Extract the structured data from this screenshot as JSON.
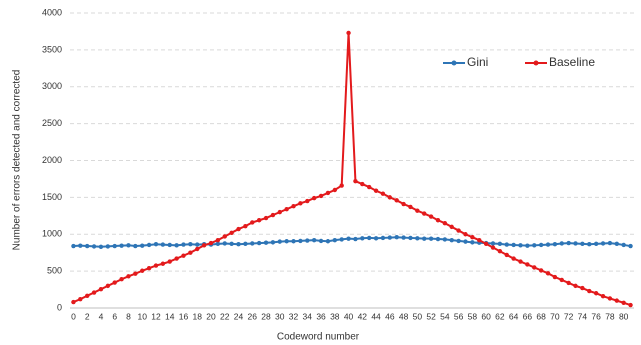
{
  "chart_data": {
    "type": "line",
    "x_label": "Codeword number",
    "y_label": "Number of errors detected and corrected",
    "x": [
      0,
      1,
      2,
      3,
      4,
      5,
      6,
      7,
      8,
      9,
      10,
      11,
      12,
      13,
      14,
      15,
      16,
      17,
      18,
      19,
      20,
      21,
      22,
      23,
      24,
      25,
      26,
      27,
      28,
      29,
      30,
      31,
      32,
      33,
      34,
      35,
      36,
      37,
      38,
      39,
      40,
      41,
      42,
      43,
      44,
      45,
      46,
      47,
      48,
      49,
      50,
      51,
      52,
      53,
      54,
      55,
      56,
      57,
      58,
      59,
      60,
      61,
      62,
      63,
      64,
      65,
      66,
      67,
      68,
      69,
      70,
      71,
      72,
      73,
      74,
      75,
      76,
      77,
      78,
      79,
      80,
      81
    ],
    "xlim": [
      -0.5,
      81.5
    ],
    "xticks": [
      0,
      2,
      4,
      6,
      8,
      10,
      12,
      14,
      16,
      18,
      20,
      22,
      24,
      26,
      28,
      30,
      32,
      34,
      36,
      38,
      40,
      42,
      44,
      46,
      48,
      50,
      52,
      54,
      56,
      58,
      60,
      62,
      64,
      66,
      68,
      70,
      72,
      74,
      76,
      78,
      80
    ],
    "ylim": [
      0,
      4000
    ],
    "yticks": [
      0,
      500,
      1000,
      1500,
      2000,
      2500,
      3000,
      3500,
      4000
    ],
    "grid": true,
    "legend": "upper right",
    "series": [
      {
        "name": "Gini",
        "color": "#2e75b6",
        "values": [
          840,
          845,
          840,
          835,
          830,
          835,
          840,
          845,
          850,
          840,
          845,
          855,
          865,
          860,
          855,
          850,
          860,
          865,
          860,
          865,
          860,
          870,
          875,
          870,
          865,
          870,
          875,
          880,
          885,
          890,
          900,
          905,
          905,
          910,
          915,
          920,
          910,
          905,
          920,
          930,
          940,
          935,
          945,
          950,
          945,
          950,
          955,
          960,
          955,
          950,
          945,
          940,
          940,
          935,
          930,
          920,
          910,
          900,
          890,
          885,
          880,
          875,
          870,
          860,
          855,
          850,
          845,
          850,
          855,
          860,
          865,
          875,
          880,
          875,
          870,
          865,
          870,
          875,
          880,
          870,
          855,
          840
        ]
      },
      {
        "name": "Baseline",
        "color": "#e31a1c",
        "values": [
          80,
          120,
          165,
          210,
          255,
          300,
          345,
          390,
          430,
          465,
          505,
          540,
          575,
          600,
          630,
          670,
          710,
          750,
          800,
          850,
          880,
          920,
          970,
          1020,
          1070,
          1110,
          1160,
          1190,
          1220,
          1260,
          1300,
          1340,
          1380,
          1420,
          1450,
          1490,
          1520,
          1560,
          1600,
          1660,
          3730,
          1720,
          1680,
          1640,
          1590,
          1550,
          1500,
          1460,
          1410,
          1370,
          1320,
          1280,
          1240,
          1190,
          1150,
          1100,
          1050,
          1000,
          960,
          920,
          870,
          820,
          770,
          720,
          670,
          630,
          590,
          550,
          510,
          470,
          420,
          380,
          340,
          300,
          270,
          230,
          200,
          160,
          130,
          100,
          70,
          40
        ]
      }
    ]
  }
}
